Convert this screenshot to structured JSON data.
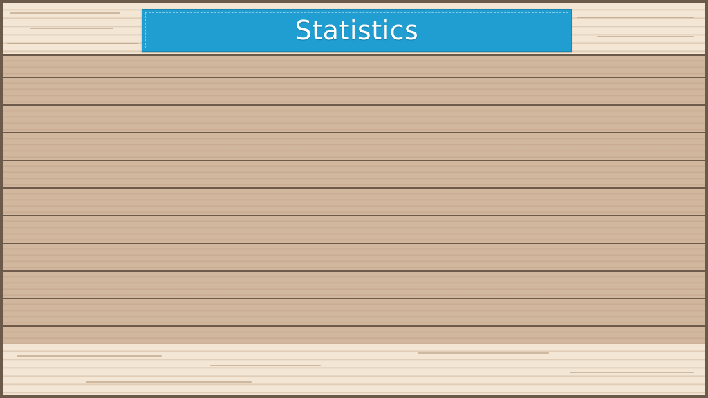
{
  "banner": {
    "title": "Statistics"
  },
  "colors": {
    "banner_blue": "#209ed2",
    "plank_wood": "#d2b79f",
    "light_wood": "#f3e6d5",
    "frame_brown": "#6b5a4a"
  }
}
